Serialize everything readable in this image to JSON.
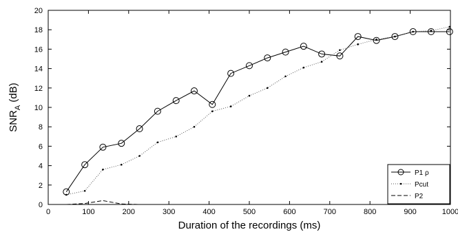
{
  "chart_data": {
    "type": "line",
    "xlabel": "Duration of the recordings (ms)",
    "ylabel_main": "SNR",
    "ylabel_sub": "A",
    "ylabel_unit": " (dB)",
    "xlim": [
      0,
      1000
    ],
    "ylim": [
      0,
      20
    ],
    "xticks": [
      0,
      100,
      200,
      300,
      400,
      500,
      600,
      700,
      800,
      900,
      1000
    ],
    "yticks": [
      0,
      2,
      4,
      6,
      8,
      10,
      12,
      14,
      16,
      18,
      20
    ],
    "grid": false,
    "legend_position": "bottom-right",
    "series": [
      {
        "name": "P1 ρ",
        "style": "solid-circle",
        "x": [
          45,
          91,
          136,
          182,
          227,
          272,
          318,
          363,
          408,
          454,
          500,
          545,
          590,
          635,
          680,
          725,
          770,
          816,
          862,
          907,
          952,
          998
        ],
        "y": [
          1.3,
          4.1,
          5.9,
          6.3,
          7.8,
          9.6,
          10.7,
          11.7,
          10.3,
          13.5,
          14.3,
          15.1,
          15.7,
          16.3,
          15.5,
          15.3,
          17.3,
          16.9,
          17.3,
          17.8,
          17.8,
          17.8
        ]
      },
      {
        "name": "Pcut",
        "style": "dotted",
        "x": [
          45,
          91,
          136,
          182,
          227,
          272,
          318,
          363,
          408,
          454,
          500,
          545,
          590,
          635,
          680,
          725,
          770,
          816,
          862,
          907,
          952,
          998
        ],
        "y": [
          1.0,
          1.4,
          3.6,
          4.1,
          5.0,
          6.4,
          7.0,
          8.0,
          9.6,
          10.1,
          11.2,
          12.0,
          13.2,
          14.1,
          14.7,
          15.9,
          16.5,
          17.0,
          17.3,
          17.8,
          17.9,
          18.3
        ]
      },
      {
        "name": "P2",
        "style": "dashed",
        "x": [
          45,
          91,
          136,
          182,
          227,
          272,
          318,
          363,
          408,
          454,
          500,
          545,
          590,
          635,
          680,
          725,
          770,
          816,
          862,
          907,
          952,
          998
        ],
        "y": [
          0,
          0.1,
          0.4,
          0.05,
          0,
          0,
          0,
          0,
          0,
          0,
          0,
          0,
          0,
          0,
          0,
          0,
          0,
          0,
          0,
          0,
          0,
          0
        ]
      }
    ]
  }
}
